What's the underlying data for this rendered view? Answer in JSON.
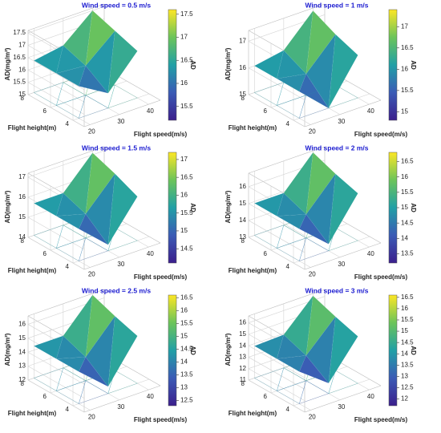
{
  "chart_data": [
    {
      "type": "surface",
      "title": "Wind speed = 0.5 m/s",
      "xlabel": "Flight speed(m/s)",
      "ylabel": "Flight height(m)",
      "zlabel": "AD(mg/m²)",
      "colorbar_label": "AD",
      "x": [
        20,
        30,
        40
      ],
      "y": [
        4,
        6,
        8
      ],
      "z": [
        [
          16.3,
          15.6,
          16.9
        ],
        [
          16.3,
          16.2,
          17.2
        ],
        [
          16.3,
          16.5,
          17.5
        ]
      ],
      "xlim": [
        18,
        44
      ],
      "ylim": [
        3,
        8
      ],
      "zlim": [
        15,
        17.6
      ],
      "xticks": [
        20,
        30,
        40
      ],
      "yticks": [
        4,
        6,
        8
      ],
      "zticks": [
        15,
        15.5,
        16,
        16.5,
        17,
        17.5
      ],
      "clim": [
        15.2,
        17.6
      ],
      "cticks": [
        15.5,
        16,
        16.5,
        17,
        17.5
      ]
    },
    {
      "type": "surface",
      "title": "Wind speed = 1 m/s",
      "xlabel": "Flight speed(m/s)",
      "ylabel": "Flight height(m)",
      "zlabel": "AD(mg/m²)",
      "colorbar_label": "AD",
      "x": [
        20,
        30,
        40
      ],
      "y": [
        4,
        6,
        8
      ],
      "z": [
        [
          16.0,
          15.0,
          16.6
        ],
        [
          16.0,
          15.8,
          16.9
        ],
        [
          16.0,
          16.2,
          17.3
        ]
      ],
      "xlim": [
        18,
        44
      ],
      "ylim": [
        3,
        8
      ],
      "zlim": [
        15,
        17.4
      ],
      "xticks": [
        20,
        30,
        40
      ],
      "yticks": [
        4,
        6,
        8
      ],
      "zticks": [
        15,
        16,
        17
      ],
      "clim": [
        14.8,
        17.4
      ],
      "cticks": [
        15,
        15.5,
        16,
        16.5,
        17
      ]
    },
    {
      "type": "surface",
      "title": "Wind speed = 1.5 m/s",
      "xlabel": "Flight speed(m/s)",
      "ylabel": "Flight height(m)",
      "zlabel": "AD(mg/m²)",
      "colorbar_label": "AD",
      "x": [
        20,
        30,
        40
      ],
      "y": [
        4,
        6,
        8
      ],
      "z": [
        [
          15.6,
          14.3,
          16.2
        ],
        [
          15.6,
          15.2,
          16.7
        ],
        [
          15.6,
          15.6,
          17.1
        ]
      ],
      "xlim": [
        18,
        44
      ],
      "ylim": [
        3,
        8
      ],
      "zlim": [
        14,
        17.2
      ],
      "xticks": [
        20,
        30,
        40
      ],
      "yticks": [
        4,
        6,
        8
      ],
      "zticks": [
        14,
        15,
        16,
        17
      ],
      "clim": [
        14.1,
        17.2
      ],
      "cticks": [
        14.5,
        15,
        15.5,
        16,
        16.5,
        17
      ]
    },
    {
      "type": "surface",
      "title": "Wind speed = 2 m/s",
      "xlabel": "Flight speed(m/s)",
      "ylabel": "Flight height(m)",
      "zlabel": "AD(mg/m²)",
      "colorbar_label": "AD",
      "x": [
        20,
        30,
        40
      ],
      "y": [
        4,
        6,
        8
      ],
      "z": [
        [
          14.9,
          13.4,
          15.8
        ],
        [
          14.9,
          14.4,
          16.2
        ],
        [
          14.9,
          14.9,
          16.7
        ]
      ],
      "xlim": [
        18,
        44
      ],
      "ylim": [
        3,
        8
      ],
      "zlim": [
        13,
        16.8
      ],
      "xticks": [
        20,
        30,
        40
      ],
      "yticks": [
        4,
        6,
        8
      ],
      "zticks": [
        13,
        14,
        15,
        16
      ],
      "clim": [
        13.2,
        16.8
      ],
      "cticks": [
        13.5,
        14,
        14.5,
        15,
        15.5,
        16,
        16.5
      ]
    },
    {
      "type": "surface",
      "title": "Wind speed = 2.5 m/s",
      "xlabel": "Flight speed(m/s)",
      "ylabel": "Flight height(m)",
      "zlabel": "AD(mg/m²)",
      "colorbar_label": "AD",
      "x": [
        20,
        30,
        40
      ],
      "y": [
        4,
        6,
        8
      ],
      "z": [
        [
          14.3,
          12.5,
          15.4
        ],
        [
          14.3,
          13.7,
          15.9
        ],
        [
          14.3,
          14.3,
          16.5
        ]
      ],
      "xlim": [
        18,
        44
      ],
      "ylim": [
        3,
        8
      ],
      "zlim": [
        12,
        16.6
      ],
      "xticks": [
        20,
        30,
        40
      ],
      "yticks": [
        4,
        6,
        8
      ],
      "zticks": [
        12,
        13,
        14,
        15,
        16
      ],
      "clim": [
        12.3,
        16.6
      ],
      "cticks": [
        12.5,
        13,
        13.5,
        14,
        14.5,
        15,
        15.5,
        16,
        16.5
      ]
    },
    {
      "type": "surface",
      "title": "Wind speed = 3 m/s",
      "xlabel": "Flight speed(m/s)",
      "ylabel": "Flight height(m)",
      "zlabel": "AD(mg/m²)",
      "colorbar_label": "AD",
      "x": [
        20,
        30,
        40
      ],
      "y": [
        4,
        6,
        8
      ],
      "z": [
        [
          13.8,
          11.9,
          15.1
        ],
        [
          13.8,
          13.2,
          15.7
        ],
        [
          13.8,
          13.9,
          16.4
        ]
      ],
      "xlim": [
        18,
        44
      ],
      "ylim": [
        3,
        8
      ],
      "zlim": [
        11,
        16.6
      ],
      "xticks": [
        20,
        30,
        40
      ],
      "yticks": [
        4,
        6,
        8
      ],
      "zticks": [
        11,
        12,
        13,
        14,
        15,
        16
      ],
      "clim": [
        11.7,
        16.6
      ],
      "cticks": [
        12,
        12.5,
        13,
        13.5,
        14,
        14.5,
        15,
        15.5,
        16,
        16.5
      ]
    }
  ]
}
